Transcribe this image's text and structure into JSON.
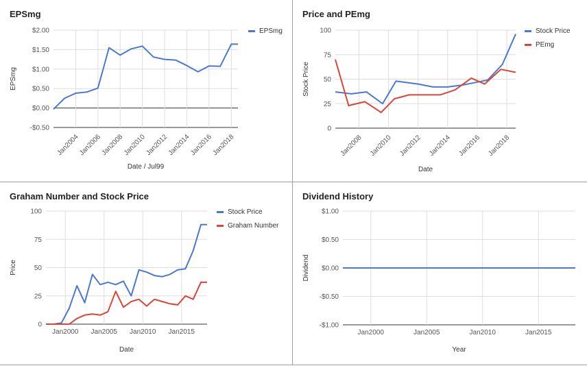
{
  "chart_data": [
    {
      "type": "line",
      "title": "EPSmg",
      "xlabel": "Date / Jul99",
      "ylabel": "EPSmg",
      "legend_position": "right",
      "ylim": [
        -0.5,
        2.0
      ],
      "xlim": [
        2002,
        2018.6
      ],
      "yticks": [
        -0.5,
        0,
        0.5,
        1.0,
        1.5,
        2.0
      ],
      "ytick_labels": [
        "-$0.50",
        "$0.00",
        "$0.50",
        "$1.00",
        "$1.50",
        "$2.00"
      ],
      "xticks": [
        2004,
        2006,
        2008,
        2010,
        2012,
        2014,
        2016,
        2018
      ],
      "xtick_labels": [
        "Jan2004",
        "Jan2006",
        "Jan2008",
        "Jan2010",
        "Jan2012",
        "Jan2014",
        "Jan2016",
        "Jan2018"
      ],
      "x_rotated": true,
      "grid": true,
      "series": [
        {
          "name": "EPSmg",
          "color": "#4a78d0",
          "x": [
            2002,
            2003,
            2004,
            2005,
            2006,
            2007,
            2008,
            2009,
            2010,
            2011,
            2012,
            2013,
            2014,
            2015,
            2016,
            2017,
            2018,
            2018.6
          ],
          "y": [
            -0.03,
            0.25,
            0.38,
            0.41,
            0.51,
            1.55,
            1.36,
            1.52,
            1.59,
            1.31,
            1.25,
            1.23,
            1.09,
            0.93,
            1.08,
            1.07,
            1.64,
            1.64
          ]
        }
      ]
    },
    {
      "type": "line",
      "title": "Price and PEmg",
      "xlabel": "Date",
      "ylabel": "Stock Price",
      "legend_position": "right",
      "ylim": [
        0,
        100
      ],
      "xlim": [
        2006.4,
        2018.6
      ],
      "yticks": [
        0,
        25,
        50,
        75,
        100
      ],
      "ytick_labels": [
        "0",
        "25",
        "50",
        "75",
        "100"
      ],
      "xticks": [
        2008,
        2010,
        2012,
        2014,
        2016,
        2018
      ],
      "xtick_labels": [
        "Jan2008",
        "Jan2010",
        "Jan2012",
        "Jan2014",
        "Jan2016",
        "Jan2018"
      ],
      "x_rotated": true,
      "grid": true,
      "series": [
        {
          "name": "Stock Price",
          "color": "#4a78d0",
          "x": [
            2006.4,
            2007.5,
            2008.5,
            2009.6,
            2010.5,
            2012,
            2013,
            2014,
            2015,
            2016,
            2016.7,
            2017.7,
            2018.6
          ],
          "y": [
            37,
            35,
            37,
            25,
            48,
            45,
            42,
            42,
            44,
            47,
            49,
            65,
            96
          ]
        },
        {
          "name": "PEmg",
          "color": "#db4437",
          "x": [
            2006.4,
            2007.3,
            2008.4,
            2009.5,
            2010.4,
            2011.4,
            2012.5,
            2013.5,
            2014.5,
            2015.6,
            2016.5,
            2017.6,
            2018.6
          ],
          "y": [
            70,
            23,
            27,
            16,
            30,
            34,
            34,
            34,
            39,
            51,
            45,
            60,
            57
          ]
        }
      ]
    },
    {
      "type": "line",
      "title": "Graham Number and Stock Price",
      "xlabel": "Date",
      "ylabel": "Price",
      "legend_position": "right",
      "ylim": [
        0,
        100
      ],
      "xlim": [
        1997.5,
        2018.3
      ],
      "yticks": [
        0,
        25,
        50,
        75,
        100
      ],
      "ytick_labels": [
        "0",
        "25",
        "50",
        "75",
        "100"
      ],
      "xticks": [
        2000,
        2005,
        2010,
        2015
      ],
      "xtick_labels": [
        "Jan2000",
        "Jan2005",
        "Jan2010",
        "Jan2015"
      ],
      "x_rotated": false,
      "grid": true,
      "series": [
        {
          "name": "Stock Price",
          "color": "#4a78d0",
          "x": [
            1997.5,
            1998.5,
            1999.5,
            2000.5,
            2001.5,
            2002.5,
            2003.5,
            2004.5,
            2005.5,
            2006.5,
            2007.5,
            2008.5,
            2009.5,
            2010.5,
            2011.5,
            2012.5,
            2013.5,
            2014.5,
            2015.5,
            2016.5,
            2017.5,
            2018.3
          ],
          "y": [
            0,
            0,
            1,
            14,
            34,
            19,
            44,
            35,
            37,
            35,
            38,
            25,
            48,
            46,
            43,
            42,
            44,
            48,
            49,
            65,
            88,
            88
          ]
        },
        {
          "name": "Graham Number",
          "color": "#db4437",
          "x": [
            1997.5,
            1998.5,
            1999.5,
            2000.5,
            2001.5,
            2002.5,
            2003.5,
            2004.5,
            2005.5,
            2006.5,
            2007.5,
            2008.5,
            2009.5,
            2010.5,
            2011.5,
            2012.5,
            2013.5,
            2014.5,
            2015.5,
            2016.5,
            2017.5,
            2018.3
          ],
          "y": [
            0,
            0,
            0,
            0,
            5,
            8,
            9,
            8,
            11,
            29,
            15,
            20,
            22,
            16,
            22,
            20,
            18,
            17,
            25,
            22,
            37,
            37
          ]
        }
      ]
    },
    {
      "type": "line",
      "title": "Dividend History",
      "xlabel": "Year",
      "ylabel": "Dividend",
      "legend_position": "none",
      "ylim": [
        -1.0,
        1.0
      ],
      "xlim": [
        1997.5,
        2018.3
      ],
      "yticks": [
        -1.0,
        -0.5,
        0,
        0.5,
        1.0
      ],
      "ytick_labels": [
        "-$1.00",
        "-$0.50",
        "$0.00",
        "$0.50",
        "$1.00"
      ],
      "xticks": [
        2000,
        2005,
        2010,
        2015
      ],
      "xtick_labels": [
        "Jan2000",
        "Jan2005",
        "Jan2010",
        "Jan2015"
      ],
      "x_rotated": false,
      "grid": true,
      "series": [
        {
          "color": "#4a78d0",
          "x": [
            1997.5,
            2018.3
          ],
          "y": [
            0,
            0
          ]
        }
      ]
    }
  ]
}
